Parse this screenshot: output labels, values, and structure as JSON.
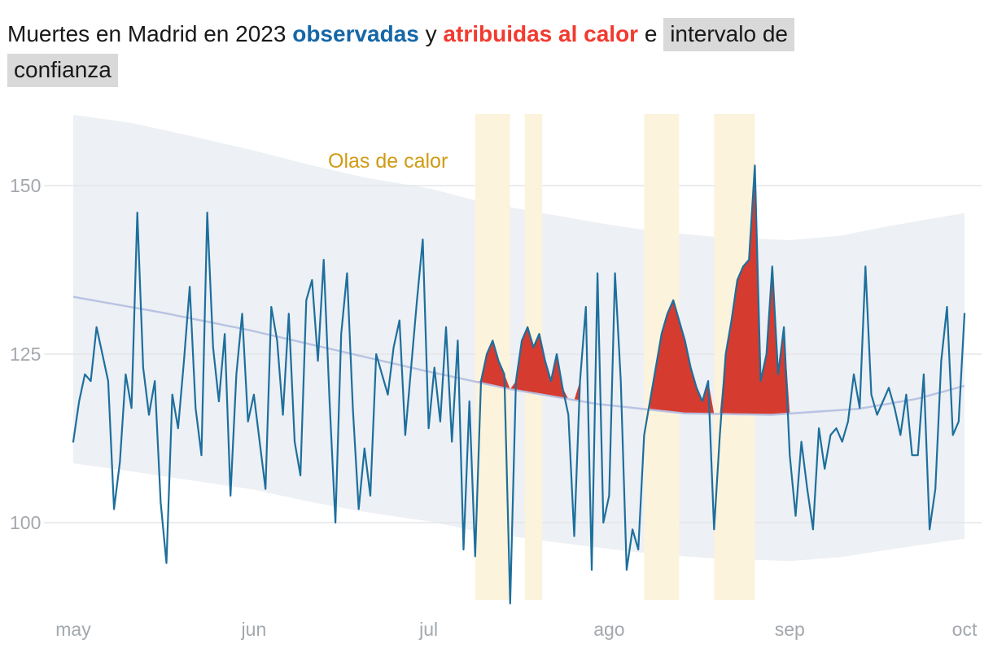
{
  "title": {
    "part1": "Muertes en Madrid en 2023 ",
    "observadas": "observadas",
    "conj1": " y ",
    "atribuidas": "atribuidas al calor",
    "conj2": " e ",
    "intervalo_1": "intervalo de",
    "intervalo_2": "confianza"
  },
  "annotations": {
    "heatwave_label": "Olas de calor"
  },
  "colors": {
    "observed": "#1d6f9d",
    "attributed": "#d63b2f",
    "baseline": "#b5c0e2",
    "band": "#edf0f4",
    "heatwave_band": "#fcf3dc",
    "heatwave_label": "#d09b13",
    "axis_text": "#a3a8ae",
    "grid": "#e4e6e9",
    "title_blue": "#1567a7",
    "title_red": "#f23a2e",
    "highlight_bg": "#d9d9d9"
  },
  "chart_data": {
    "type": "line",
    "title": "Muertes en Madrid en 2023 observadas y atribuidas al calor e intervalo de confianza",
    "x_unit": "days from 1 May 2023",
    "x_tick_labels": [
      "may",
      "jun",
      "jul",
      "ago",
      "sep",
      "oct"
    ],
    "x_tick_days": [
      0,
      31,
      61,
      92,
      123,
      153
    ],
    "y_ticks": [
      100,
      125,
      150
    ],
    "ylim": [
      87,
      161
    ],
    "grid": "horizontal",
    "legend": "inline-in-title",
    "series": {
      "observed": [
        112,
        118,
        122,
        121,
        129,
        125,
        121,
        102,
        109,
        122,
        117,
        146,
        123,
        116,
        121,
        103,
        94,
        119,
        114,
        124,
        135,
        117,
        110,
        146,
        126,
        118,
        128,
        104,
        122,
        131,
        115,
        119,
        112,
        105,
        132,
        127,
        116,
        131,
        112,
        107,
        133,
        136,
        124,
        139,
        118,
        100,
        128,
        137,
        117,
        102,
        111,
        104,
        125,
        122,
        119,
        126,
        130,
        113,
        123,
        133,
        142,
        114,
        123,
        115,
        129,
        112,
        127,
        96,
        118,
        95,
        121,
        125,
        127,
        124,
        122,
        88,
        121,
        127,
        129,
        126,
        128,
        124,
        121,
        125,
        120,
        116,
        98,
        121,
        132,
        93,
        137,
        100,
        104,
        137,
        121,
        93,
        99,
        96,
        113,
        118,
        123,
        128,
        131,
        133,
        130,
        127,
        123,
        120,
        118,
        121,
        99,
        113,
        125,
        130,
        136,
        138,
        139,
        153,
        121,
        125,
        138,
        122,
        129,
        110,
        101,
        112,
        105,
        99,
        114,
        108,
        113,
        114,
        112,
        115,
        122,
        117,
        138,
        119,
        116,
        118,
        120,
        117,
        113,
        119,
        110,
        110,
        122,
        99,
        105,
        124,
        132,
        113,
        115,
        131
      ],
      "baseline_points": [
        [
          0,
          133.5
        ],
        [
          15,
          131.2
        ],
        [
          30,
          128.6
        ],
        [
          45,
          125.6
        ],
        [
          60,
          122.6
        ],
        [
          75,
          119.8
        ],
        [
          90,
          117.6
        ],
        [
          105,
          116.2
        ],
        [
          120,
          116.0
        ],
        [
          135,
          116.9
        ],
        [
          145,
          118.4
        ],
        [
          153,
          120.3
        ]
      ],
      "band_upper_points": [
        [
          0,
          160.5
        ],
        [
          10,
          159.3
        ],
        [
          20,
          157.4
        ],
        [
          31,
          155.2
        ],
        [
          40,
          153.2
        ],
        [
          50,
          151.2
        ],
        [
          61,
          149.6
        ],
        [
          70,
          147.6
        ],
        [
          80,
          146.0
        ],
        [
          92,
          144.2
        ],
        [
          100,
          143.2
        ],
        [
          110,
          142.4
        ],
        [
          123,
          141.9
        ],
        [
          132,
          142.6
        ],
        [
          140,
          144.0
        ],
        [
          148,
          145.2
        ],
        [
          153,
          145.9
        ]
      ],
      "band_lower_points": [
        [
          0,
          108.8
        ],
        [
          10,
          107.6
        ],
        [
          20,
          106.3
        ],
        [
          31,
          104.9
        ],
        [
          40,
          103.2
        ],
        [
          50,
          101.6
        ],
        [
          61,
          100.2
        ],
        [
          70,
          98.6
        ],
        [
          80,
          97.4
        ],
        [
          92,
          96.1
        ],
        [
          100,
          95.3
        ],
        [
          110,
          94.7
        ],
        [
          123,
          94.3
        ],
        [
          132,
          94.9
        ],
        [
          140,
          96.0
        ],
        [
          148,
          97.0
        ],
        [
          153,
          97.6
        ]
      ]
    },
    "heatwave_day_ranges": [
      [
        69,
        75
      ],
      [
        77.5,
        80.5
      ],
      [
        98,
        104
      ],
      [
        110,
        117
      ]
    ],
    "attributed_day_ranges": [
      [
        69,
        87
      ],
      [
        99,
        123
      ]
    ]
  }
}
